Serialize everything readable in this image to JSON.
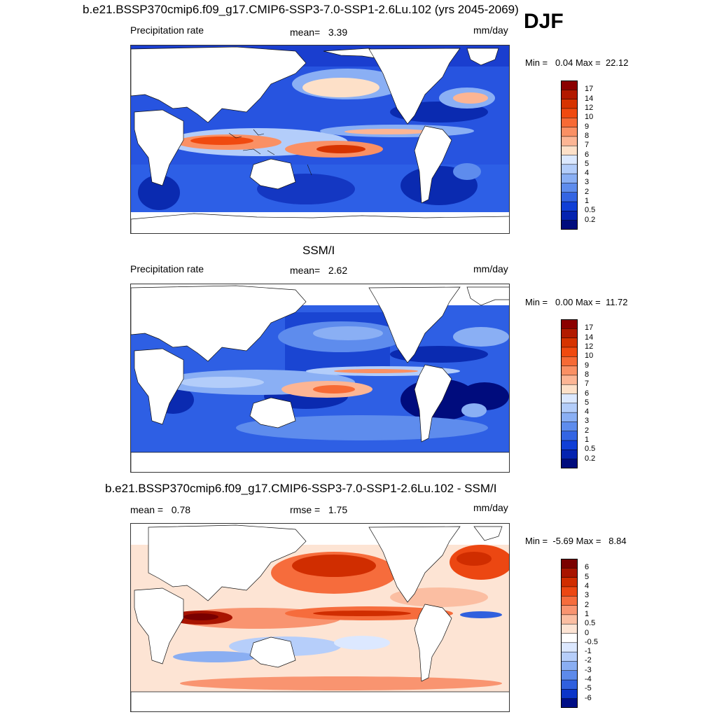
{
  "season": "DJF",
  "panels": [
    {
      "id": "model",
      "title": "b.e21.BSSP370cmip6.f09_g17.CMIP6-SSP3-7.0-SSP1-2.6Lu.102 (yrs 2045-2069)",
      "left_label": "Precipitation rate",
      "stat_label": "mean=",
      "stat_value": "3.39",
      "stat2_label": "",
      "stat2_value": "",
      "units": "mm/day",
      "min_label": "Min =",
      "min_value": "0.04",
      "max_label": "Max =",
      "max_value": "22.12"
    },
    {
      "id": "obs",
      "title": "SSM/I",
      "left_label": "Precipitation rate",
      "stat_label": "mean=",
      "stat_value": "2.62",
      "stat2_label": "",
      "stat2_value": "",
      "units": "mm/day",
      "min_label": "Min =",
      "min_value": "0.00",
      "max_label": "Max =",
      "max_value": "11.72"
    },
    {
      "id": "diff",
      "title": "b.e21.BSSP370cmip6.f09_g17.CMIP6-SSP3-7.0-SSP1-2.6Lu.102 - SSM/I",
      "left_label": "",
      "stat_label": "mean =",
      "stat_value": "0.78",
      "stat2_label": "rmse =",
      "stat2_value": "1.75",
      "units": "mm/day",
      "min_label": "Min =",
      "min_value": "-5.69",
      "max_label": "Max =",
      "max_value": "8.84"
    }
  ],
  "chart_data": [
    {
      "type": "heatmap",
      "name": "model precipitation",
      "colorbar_levels": [
        "17",
        "14",
        "12",
        "10",
        "9",
        "8",
        "7",
        "6",
        "5",
        "4",
        "3",
        "2",
        "1",
        "0.5",
        "0.2"
      ],
      "colorbar_colors": [
        "#8b0000",
        "#b21a00",
        "#d63300",
        "#f04a10",
        "#f76a35",
        "#fa9064",
        "#fcb594",
        "#fde0c8",
        "#dbe8ff",
        "#b3cdfa",
        "#8aaff4",
        "#5e8ced",
        "#3465e3",
        "#103fd6",
        "#0423b0",
        "#000c7d"
      ]
    },
    {
      "type": "heatmap",
      "name": "observed precipitation",
      "colorbar_levels": [
        "17",
        "14",
        "12",
        "10",
        "9",
        "8",
        "7",
        "6",
        "5",
        "4",
        "3",
        "2",
        "1",
        "0.5",
        "0.2"
      ],
      "colorbar_colors": [
        "#8b0000",
        "#b21a00",
        "#d63300",
        "#f04a10",
        "#f76a35",
        "#fa9064",
        "#fcb594",
        "#fde0c8",
        "#dbe8ff",
        "#b3cdfa",
        "#8aaff4",
        "#5e8ced",
        "#3465e3",
        "#103fd6",
        "#0423b0",
        "#000c7d"
      ]
    },
    {
      "type": "heatmap",
      "name": "difference",
      "colorbar_levels": [
        "6",
        "5",
        "4",
        "3",
        "2",
        "1",
        "0.5",
        "0",
        "-0.5",
        "-1",
        "-2",
        "-3",
        "-4",
        "-5",
        "-6"
      ],
      "colorbar_colors": [
        "#7a0000",
        "#a81400",
        "#d02d00",
        "#ec4712",
        "#f66c3c",
        "#f99470",
        "#fbbea2",
        "#fde4d4",
        "#ffffff",
        "#dce8ff",
        "#b6cefa",
        "#8aaef2",
        "#5d8aea",
        "#3060de",
        "#0b35c8",
        "#000e86"
      ]
    }
  ]
}
